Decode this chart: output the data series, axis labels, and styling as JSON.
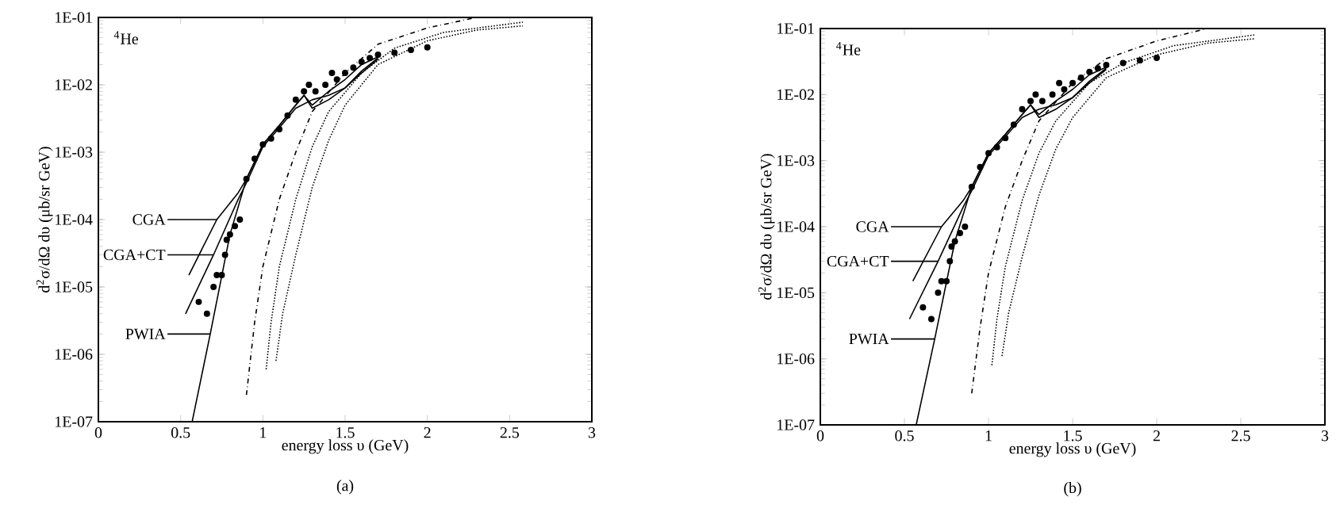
{
  "chart_data": [
    {
      "type": "line",
      "xlabel": "energy loss υ (GeV)",
      "ylabel": "d$^{2}$σ/dΩ dυ (μb/sr GeV)",
      "log": "y",
      "legend": false,
      "grid": false,
      "xlim": [
        0,
        3
      ],
      "xticks": [
        0,
        0.5,
        1,
        1.5,
        2,
        2.5,
        3
      ],
      "ylim": [
        1e-07,
        0.1
      ],
      "yticks": [
        {
          "value": 1e-07,
          "label": "1E-07"
        },
        {
          "value": 1e-06,
          "label": "1E-06"
        },
        {
          "value": 1e-05,
          "label": "1E-05"
        },
        {
          "value": 0.0001,
          "label": "1E-04"
        },
        {
          "value": 0.001,
          "label": "1E-03"
        },
        {
          "value": 0.01,
          "label": "1E-02"
        },
        {
          "value": 0.1,
          "label": "1E-01"
        }
      ],
      "annotations": [
        "$^{4}$He",
        "(a)"
      ],
      "series": [
        {
          "type": "scatter",
          "marker": "circle",
          "color": "#000000",
          "x": [
            0.61,
            0.66,
            0.7,
            0.72,
            0.75,
            0.77,
            0.78,
            0.8,
            0.83,
            0.86,
            0.9,
            0.95,
            1.0,
            1.05,
            1.1,
            1.15,
            1.2,
            1.25,
            1.28,
            1.32,
            1.38,
            1.42,
            1.45,
            1.5,
            1.55,
            1.6,
            1.65,
            1.7,
            1.8,
            1.9,
            2.0
          ],
          "values": [
            6e-06,
            4e-06,
            1e-05,
            1.5e-05,
            1.5e-05,
            3e-05,
            5e-05,
            6e-05,
            8e-05,
            0.0001,
            0.0004,
            0.0008,
            0.0013,
            0.0016,
            0.0022,
            0.0035,
            0.006,
            0.008,
            0.01,
            0.008,
            0.01,
            0.015,
            0.012,
            0.015,
            0.018,
            0.022,
            0.025,
            0.028,
            0.03,
            0.033,
            0.036
          ]
        },
        {
          "type": "line",
          "name": "CGA",
          "line_style": "solid",
          "color": "#000000",
          "x": [
            0.55,
            0.72,
            0.85,
            0.9,
            1.0,
            1.1,
            1.2,
            1.25,
            1.3,
            1.4,
            1.5,
            1.6,
            1.7
          ],
          "values": [
            1.5e-05,
            0.0001,
            0.00025,
            0.0004,
            0.0013,
            0.0025,
            0.005,
            0.007,
            0.005,
            0.008,
            0.012,
            0.02,
            0.026
          ]
        },
        {
          "type": "line",
          "name": "CGA+CT",
          "line_style": "solid",
          "color": "#000000",
          "x": [
            0.53,
            0.7,
            0.85,
            0.9,
            1.0,
            1.1,
            1.2,
            1.3,
            1.4,
            1.5,
            1.6,
            1.7
          ],
          "values": [
            4e-06,
            3e-05,
            0.0002,
            0.00035,
            0.0012,
            0.0023,
            0.0045,
            0.006,
            0.007,
            0.009,
            0.015,
            0.024
          ]
        },
        {
          "type": "line",
          "name": "PWIA",
          "line_style": "solid",
          "color": "#000000",
          "x": [
            0.57,
            0.68,
            0.8,
            0.9,
            1.0,
            1.1,
            1.2,
            1.25,
            1.3,
            1.4,
            1.5,
            1.6,
            1.7
          ],
          "values": [
            1e-07,
            2e-06,
            6e-05,
            0.0004,
            0.0013,
            0.0025,
            0.005,
            0.007,
            0.0045,
            0.006,
            0.009,
            0.016,
            0.025
          ]
        },
        {
          "type": "line",
          "line_style": "dashed",
          "color": "#000000",
          "x": [
            0.9,
            0.95,
            1.0,
            1.1,
            1.2,
            1.3,
            1.5,
            1.7,
            2.0,
            2.3
          ],
          "values": [
            2.5e-07,
            3e-06,
            2e-05,
            0.0002,
            0.001,
            0.004,
            0.015,
            0.04,
            0.07,
            0.1
          ]
        },
        {
          "type": "line",
          "line_style": "dotted",
          "color": "#000000",
          "x": [
            1.02,
            1.05,
            1.1,
            1.2,
            1.3,
            1.4,
            1.6,
            1.8,
            2.1,
            2.58
          ],
          "values": [
            6e-07,
            3e-06,
            2e-05,
            0.0002,
            0.0012,
            0.004,
            0.015,
            0.035,
            0.06,
            0.085
          ]
        },
        {
          "type": "line",
          "line_style": "dotted",
          "color": "#000000",
          "x": [
            1.08,
            1.12,
            1.2,
            1.3,
            1.4,
            1.5,
            1.7,
            2.0,
            2.3,
            2.58
          ],
          "values": [
            8e-07,
            4e-06,
            3e-05,
            0.0003,
            0.0015,
            0.005,
            0.02,
            0.045,
            0.065,
            0.075
          ]
        }
      ]
    },
    {
      "type": "line",
      "xlabel": "energy loss υ (GeV)",
      "ylabel": "d$^{2}$σ/dΩ dυ (μb/sr GeV)",
      "log": "y",
      "legend": false,
      "grid": false,
      "xlim": [
        0,
        3
      ],
      "xticks": [
        0,
        0.5,
        1,
        1.5,
        2,
        2.5,
        3
      ],
      "ylim": [
        1e-07,
        0.1
      ],
      "yticks": [
        {
          "value": 1e-07,
          "label": "1E-07"
        },
        {
          "value": 1e-06,
          "label": "1E-06"
        },
        {
          "value": 1e-05,
          "label": "1E-05"
        },
        {
          "value": 0.0001,
          "label": "1E-04"
        },
        {
          "value": 0.001,
          "label": "1E-03"
        },
        {
          "value": 0.01,
          "label": "1E-02"
        },
        {
          "value": 0.1,
          "label": "1E-01"
        }
      ],
      "annotations": [
        "$^{4}$He",
        "(b)"
      ],
      "series": [
        {
          "type": "scatter",
          "marker": "circle",
          "color": "#000000",
          "x": [
            0.61,
            0.66,
            0.7,
            0.72,
            0.75,
            0.77,
            0.78,
            0.8,
            0.83,
            0.86,
            0.9,
            0.95,
            1.0,
            1.05,
            1.1,
            1.15,
            1.2,
            1.25,
            1.28,
            1.32,
            1.38,
            1.42,
            1.45,
            1.5,
            1.55,
            1.6,
            1.65,
            1.7,
            1.8,
            1.9,
            2.0
          ],
          "values": [
            6e-06,
            4e-06,
            1e-05,
            1.5e-05,
            1.5e-05,
            3e-05,
            5e-05,
            6e-05,
            8e-05,
            0.0001,
            0.0004,
            0.0008,
            0.0013,
            0.0016,
            0.0022,
            0.0035,
            0.006,
            0.008,
            0.01,
            0.008,
            0.01,
            0.015,
            0.012,
            0.015,
            0.018,
            0.022,
            0.025,
            0.028,
            0.03,
            0.033,
            0.036
          ]
        },
        {
          "type": "line",
          "name": "CGA",
          "line_style": "solid",
          "color": "#000000",
          "x": [
            0.55,
            0.72,
            0.85,
            0.9,
            1.0,
            1.1,
            1.2,
            1.25,
            1.3,
            1.4,
            1.5,
            1.6,
            1.7
          ],
          "values": [
            1.5e-05,
            0.0001,
            0.00025,
            0.0004,
            0.0013,
            0.0025,
            0.005,
            0.007,
            0.005,
            0.008,
            0.012,
            0.02,
            0.026
          ]
        },
        {
          "type": "line",
          "name": "CGA+CT",
          "line_style": "solid",
          "color": "#000000",
          "x": [
            0.53,
            0.7,
            0.85,
            0.9,
            1.0,
            1.1,
            1.2,
            1.3,
            1.4,
            1.5,
            1.6,
            1.7
          ],
          "values": [
            4e-06,
            3e-05,
            0.0002,
            0.00035,
            0.0012,
            0.0023,
            0.0045,
            0.006,
            0.007,
            0.009,
            0.015,
            0.024
          ]
        },
        {
          "type": "line",
          "name": "PWIA",
          "line_style": "solid",
          "color": "#000000",
          "x": [
            0.57,
            0.68,
            0.8,
            0.9,
            1.0,
            1.1,
            1.2,
            1.25,
            1.3,
            1.4,
            1.5,
            1.6,
            1.7
          ],
          "values": [
            1e-07,
            2e-06,
            6e-05,
            0.0004,
            0.0013,
            0.0025,
            0.005,
            0.007,
            0.0045,
            0.006,
            0.009,
            0.016,
            0.025
          ]
        },
        {
          "type": "line",
          "line_style": "dashed",
          "color": "#000000",
          "x": [
            0.9,
            0.95,
            1.0,
            1.1,
            1.2,
            1.3,
            1.5,
            1.7,
            2.0,
            2.3
          ],
          "values": [
            3e-07,
            3e-06,
            2e-05,
            0.0002,
            0.001,
            0.004,
            0.015,
            0.035,
            0.065,
            0.1
          ]
        },
        {
          "type": "line",
          "line_style": "dotted",
          "color": "#000000",
          "x": [
            1.02,
            1.05,
            1.1,
            1.2,
            1.3,
            1.4,
            1.6,
            1.8,
            2.1,
            2.58
          ],
          "values": [
            8e-07,
            4e-06,
            2.5e-05,
            0.00025,
            0.0013,
            0.004,
            0.015,
            0.03,
            0.055,
            0.08
          ]
        },
        {
          "type": "line",
          "line_style": "dotted",
          "color": "#000000",
          "x": [
            1.08,
            1.12,
            1.2,
            1.3,
            1.4,
            1.5,
            1.7,
            2.0,
            2.3,
            2.58
          ],
          "values": [
            1.1e-06,
            5e-06,
            3.5e-05,
            0.0003,
            0.0015,
            0.0045,
            0.018,
            0.04,
            0.06,
            0.07
          ]
        }
      ]
    }
  ]
}
